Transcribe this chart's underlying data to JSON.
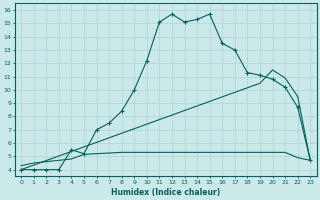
{
  "xlabel": "Humidex (Indice chaleur)",
  "bg_color": "#cce9e9",
  "grid_color": "#aad4d4",
  "line_color": "#006060",
  "xlim": [
    -0.5,
    23.5
  ],
  "ylim": [
    3.5,
    16.5
  ],
  "xticks": [
    0,
    1,
    2,
    3,
    4,
    5,
    6,
    7,
    8,
    9,
    10,
    11,
    12,
    13,
    14,
    15,
    16,
    17,
    18,
    19,
    20,
    21,
    22,
    23
  ],
  "yticks": [
    4,
    5,
    6,
    7,
    8,
    9,
    10,
    11,
    12,
    13,
    14,
    15,
    16
  ],
  "curve1_x": [
    0,
    1,
    2,
    3,
    4,
    5,
    6,
    7,
    8,
    9,
    10,
    11,
    12,
    13,
    14,
    15,
    16,
    17,
    18,
    19,
    20,
    21,
    22,
    23
  ],
  "curve1_y": [
    4.0,
    4.0,
    4.0,
    4.0,
    5.5,
    5.2,
    7.0,
    7.5,
    8.4,
    10.0,
    12.2,
    15.1,
    15.7,
    15.1,
    15.3,
    15.7,
    13.5,
    13.0,
    11.3,
    11.1,
    10.8,
    10.2,
    8.7,
    4.7
  ],
  "curve2_x": [
    0,
    1,
    2,
    3,
    4,
    5,
    6,
    7,
    8,
    9,
    10,
    11,
    12,
    13,
    14,
    15,
    16,
    17,
    18,
    19,
    20,
    21,
    22,
    23
  ],
  "curve2_y": [
    4.3,
    4.5,
    4.6,
    4.7,
    4.8,
    5.15,
    5.2,
    5.25,
    5.3,
    5.3,
    5.3,
    5.3,
    5.3,
    5.3,
    5.3,
    5.3,
    5.3,
    5.3,
    5.3,
    5.3,
    5.3,
    5.3,
    4.9,
    4.7
  ],
  "curve3_x": [
    0,
    19,
    20,
    21,
    22,
    23
  ],
  "curve3_y": [
    4.0,
    10.5,
    11.5,
    10.9,
    9.5,
    4.7
  ]
}
